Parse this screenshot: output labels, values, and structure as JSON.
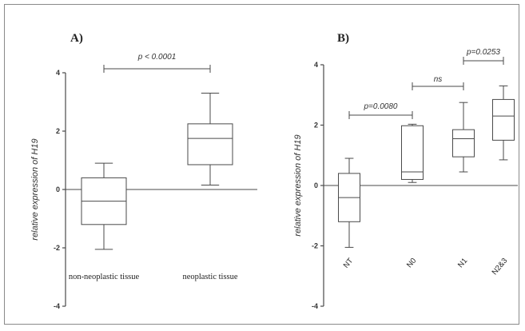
{
  "chart_data": [
    {
      "type": "box",
      "panel_label": "A)",
      "ylabel": "relative expression of H19",
      "ylim": [
        -4,
        4
      ],
      "yticks": [
        -4,
        -2,
        0,
        2,
        4
      ],
      "categories": [
        "non-neoplastic tissue",
        "neoplastic tissue"
      ],
      "boxes": [
        {
          "category": "non-neoplastic tissue",
          "min": -2.05,
          "q1": -1.2,
          "median": -0.4,
          "q3": 0.4,
          "max": 0.9
        },
        {
          "category": "neoplastic tissue",
          "min": 0.15,
          "q1": 0.85,
          "median": 1.75,
          "q3": 2.25,
          "max": 3.3
        }
      ],
      "annotations": [
        {
          "from": "non-neoplastic tissue",
          "to": "neoplastic tissue",
          "label": "p < 0.0001"
        }
      ]
    },
    {
      "type": "box",
      "panel_label": "B)",
      "ylabel": "relative expression of H19",
      "ylim": [
        -4,
        4
      ],
      "yticks": [
        -4,
        -2,
        0,
        2,
        4
      ],
      "categories": [
        "NT",
        "N0",
        "N1",
        "N2&3"
      ],
      "boxes": [
        {
          "category": "NT",
          "min": -2.05,
          "q1": -1.2,
          "median": -0.4,
          "q3": 0.4,
          "max": 0.9
        },
        {
          "category": "N0",
          "min": 0.1,
          "q1": 0.2,
          "median": 0.45,
          "q3": 1.98,
          "max": 2.03
        },
        {
          "category": "N1",
          "min": 0.45,
          "q1": 0.95,
          "median": 1.55,
          "q3": 1.85,
          "max": 2.75
        },
        {
          "category": "N2&3",
          "min": 0.85,
          "q1": 1.5,
          "median": 2.3,
          "q3": 2.85,
          "max": 3.3
        }
      ],
      "annotations": [
        {
          "from": "NT",
          "to": "N0",
          "label": "p=0.0080"
        },
        {
          "from": "N0",
          "to": "N1",
          "label": "ns"
        },
        {
          "from": "N1",
          "to": "N2&3",
          "label": "p=0.0253"
        }
      ]
    }
  ]
}
